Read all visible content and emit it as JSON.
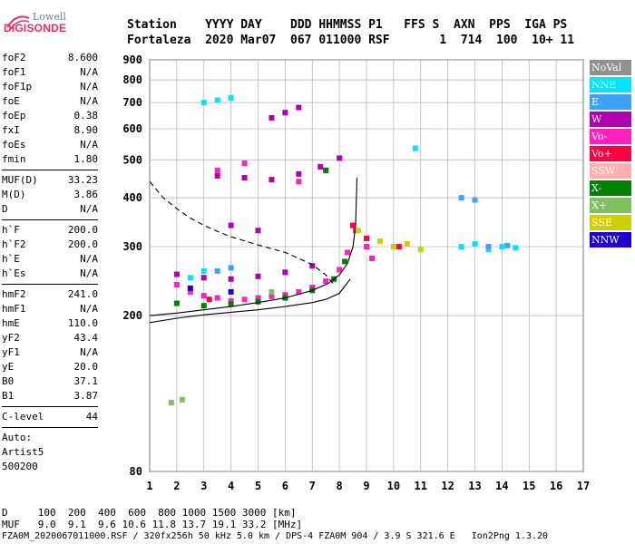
{
  "logo": {
    "top": "Lowell",
    "main": "DIGISONDE"
  },
  "header": {
    "line1": "Station    YYYY DAY    DDD HHMMSS P1   FFS S  AXN  PPS  IGA PS",
    "line2": "Fortaleza  2020 Mar07  067 011000 RSF       1  714  100  10+ 11"
  },
  "params": [
    {
      "group": [
        {
          "k": "foF2",
          "v": "8.600"
        },
        {
          "k": "foF1",
          "v": "N/A"
        },
        {
          "k": "foF1p",
          "v": "N/A"
        },
        {
          "k": "foE",
          "v": "N/A"
        },
        {
          "k": "foEp",
          "v": "0.38"
        },
        {
          "k": "fxI",
          "v": "8.90"
        },
        {
          "k": "foEs",
          "v": "N/A"
        },
        {
          "k": "fmin",
          "v": "1.80"
        }
      ]
    },
    {
      "group": [
        {
          "k": "MUF(D)",
          "v": "33.23"
        },
        {
          "k": "M(D)",
          "v": "3.86"
        },
        {
          "k": "D",
          "v": "N/A"
        }
      ]
    },
    {
      "group": [
        {
          "k": "h`F",
          "v": "200.0"
        },
        {
          "k": "h`F2",
          "v": "200.0"
        },
        {
          "k": "h`E",
          "v": "N/A"
        },
        {
          "k": "h`Es",
          "v": "N/A"
        }
      ]
    },
    {
      "group": [
        {
          "k": "hmF2",
          "v": "241.0"
        },
        {
          "k": "hmF1",
          "v": "N/A"
        },
        {
          "k": "hmE",
          "v": "110.0"
        },
        {
          "k": "yF2",
          "v": "43.4"
        },
        {
          "k": "yF1",
          "v": "N/A"
        },
        {
          "k": "yE",
          "v": "20.0"
        },
        {
          "k": "B0",
          "v": "37.1"
        },
        {
          "k": "B1",
          "v": "3.87"
        }
      ]
    },
    {
      "group": [
        {
          "k": "C-level",
          "v": "44"
        }
      ]
    }
  ],
  "auto": [
    "Auto:",
    "Artist5",
    "500200"
  ],
  "legend": [
    {
      "label": "NoVal",
      "color": "#909090"
    },
    {
      "label": "NNE",
      "color": "#00e5ff"
    },
    {
      "label": "E",
      "color": "#3fa0ff"
    },
    {
      "label": "W",
      "color": "#b000b0"
    },
    {
      "label": "Vo-",
      "color": "#ff20c0"
    },
    {
      "label": "Vo+",
      "color": "#ff0040"
    },
    {
      "label": "SSW",
      "color": "#ffb0b0"
    },
    {
      "label": "X-",
      "color": "#008000"
    },
    {
      "label": "X+",
      "color": "#80c060"
    },
    {
      "label": "SSE",
      "color": "#d0d000"
    },
    {
      "label": "NNW",
      "color": "#2000d0"
    }
  ],
  "footer": {
    "line1": "D     100  200  400  600  800 1000 1500 3000 [km]",
    "line2": "MUF   9.0  9.1  9.6 10.6 11.8 13.7 19.1 33.2 [MHz]",
    "line3": "FZA0M_2020067011000.RSF / 320fx256h 50 kHz 5.0 km / DPS-4 FZA0M 904 / 3.9 S 321.6 E   Ion2Png 1.3.20"
  },
  "chart_data": {
    "type": "scatter",
    "title": "",
    "xlabel": "",
    "ylabel": "",
    "xlim": [
      1,
      17
    ],
    "ylim": [
      80,
      900
    ],
    "y_scale": "log",
    "grid": true,
    "x_ticks": [
      1,
      2,
      3,
      4,
      5,
      6,
      7,
      8,
      9,
      10,
      11,
      12,
      13,
      14,
      15,
      16,
      17
    ],
    "y_ticks": [
      80,
      200,
      300,
      400,
      500,
      600,
      700,
      800,
      900
    ],
    "series": [
      {
        "name": "Vo-",
        "color": "#ff20c0",
        "points": [
          [
            2.0,
            240
          ],
          [
            2.5,
            230
          ],
          [
            3.0,
            225
          ],
          [
            3.5,
            222
          ],
          [
            4.0,
            218
          ],
          [
            4.5,
            220
          ],
          [
            5.0,
            222
          ],
          [
            5.5,
            224
          ],
          [
            6.0,
            226
          ],
          [
            6.5,
            230
          ],
          [
            7.0,
            236
          ],
          [
            7.5,
            245
          ],
          [
            8.0,
            262
          ],
          [
            8.3,
            290
          ],
          [
            8.6,
            330
          ],
          [
            9.0,
            300
          ],
          [
            9.2,
            280
          ],
          [
            3.5,
            470
          ],
          [
            4.5,
            490
          ],
          [
            6.5,
            440
          ],
          [
            7.5,
            470
          ]
        ]
      },
      {
        "name": "W",
        "color": "#b000b0",
        "points": [
          [
            2.0,
            255
          ],
          [
            3.0,
            250
          ],
          [
            4.0,
            248
          ],
          [
            5.0,
            252
          ],
          [
            6.0,
            258
          ],
          [
            7.0,
            268
          ],
          [
            3.5,
            455
          ],
          [
            4.5,
            450
          ],
          [
            5.5,
            445
          ],
          [
            6.5,
            460
          ],
          [
            7.3,
            480
          ],
          [
            8.0,
            505
          ],
          [
            4.0,
            340
          ],
          [
            5.0,
            330
          ],
          [
            5.5,
            640
          ],
          [
            6.0,
            660
          ],
          [
            6.5,
            680
          ]
        ]
      },
      {
        "name": "NNE",
        "color": "#00e5ff",
        "points": [
          [
            3.0,
            700
          ],
          [
            3.5,
            710
          ],
          [
            4.0,
            720
          ],
          [
            2.5,
            250
          ],
          [
            3.0,
            260
          ],
          [
            10.8,
            535
          ],
          [
            12.5,
            300
          ],
          [
            13.0,
            305
          ],
          [
            13.5,
            295
          ],
          [
            14.0,
            300
          ],
          [
            14.5,
            298
          ]
        ]
      },
      {
        "name": "E",
        "color": "#3fa0ff",
        "points": [
          [
            12.5,
            400
          ],
          [
            13.0,
            395
          ],
          [
            3.5,
            260
          ],
          [
            4.0,
            265
          ],
          [
            13.5,
            300
          ],
          [
            14.2,
            302
          ]
        ]
      },
      {
        "name": "X-",
        "color": "#008000",
        "points": [
          [
            2.0,
            215
          ],
          [
            3.0,
            212
          ],
          [
            4.0,
            214
          ],
          [
            5.0,
            217
          ],
          [
            6.0,
            222
          ],
          [
            7.0,
            232
          ],
          [
            7.8,
            248
          ],
          [
            8.2,
            275
          ],
          [
            7.5,
            470
          ]
        ]
      },
      {
        "name": "SSE",
        "color": "#d0d000",
        "points": [
          [
            10.0,
            300
          ],
          [
            10.5,
            305
          ],
          [
            11.0,
            295
          ],
          [
            8.7,
            330
          ],
          [
            9.5,
            310
          ]
        ]
      },
      {
        "name": "Vo+",
        "color": "#ff0040",
        "points": [
          [
            8.5,
            340
          ],
          [
            9.0,
            315
          ],
          [
            10.2,
            300
          ],
          [
            3.2,
            220
          ]
        ]
      },
      {
        "name": "NNW",
        "color": "#2000d0",
        "points": [
          [
            2.5,
            235
          ],
          [
            4.0,
            230
          ]
        ]
      },
      {
        "name": "X+",
        "color": "#80c060",
        "points": [
          [
            1.8,
            120
          ],
          [
            2.2,
            122
          ],
          [
            5.5,
            230
          ]
        ]
      }
    ],
    "traces": [
      {
        "style": "solid",
        "points": [
          [
            1.0,
            192
          ],
          [
            2.0,
            197
          ],
          [
            3.0,
            201
          ],
          [
            4.0,
            204
          ],
          [
            5.0,
            207
          ],
          [
            6.0,
            211
          ],
          [
            7.0,
            216
          ],
          [
            7.5,
            220
          ],
          [
            8.0,
            228
          ],
          [
            8.4,
            248
          ]
        ]
      },
      {
        "style": "solid",
        "points": [
          [
            1.0,
            200
          ],
          [
            2.0,
            203
          ],
          [
            3.0,
            207
          ],
          [
            4.0,
            211
          ],
          [
            5.0,
            216
          ],
          [
            6.0,
            222
          ],
          [
            7.0,
            232
          ],
          [
            7.6,
            242
          ],
          [
            8.0,
            254
          ],
          [
            8.3,
            272
          ],
          [
            8.5,
            300
          ],
          [
            8.6,
            340
          ],
          [
            8.65,
            450
          ]
        ]
      },
      {
        "style": "dashed",
        "points": [
          [
            1.0,
            440
          ],
          [
            1.5,
            400
          ],
          [
            2.0,
            375
          ],
          [
            2.5,
            355
          ],
          [
            3.0,
            340
          ],
          [
            3.5,
            328
          ],
          [
            4.0,
            318
          ],
          [
            5.0,
            303
          ],
          [
            6.0,
            290
          ],
          [
            7.0,
            270
          ],
          [
            7.5,
            254
          ],
          [
            7.8,
            240
          ]
        ]
      }
    ]
  }
}
